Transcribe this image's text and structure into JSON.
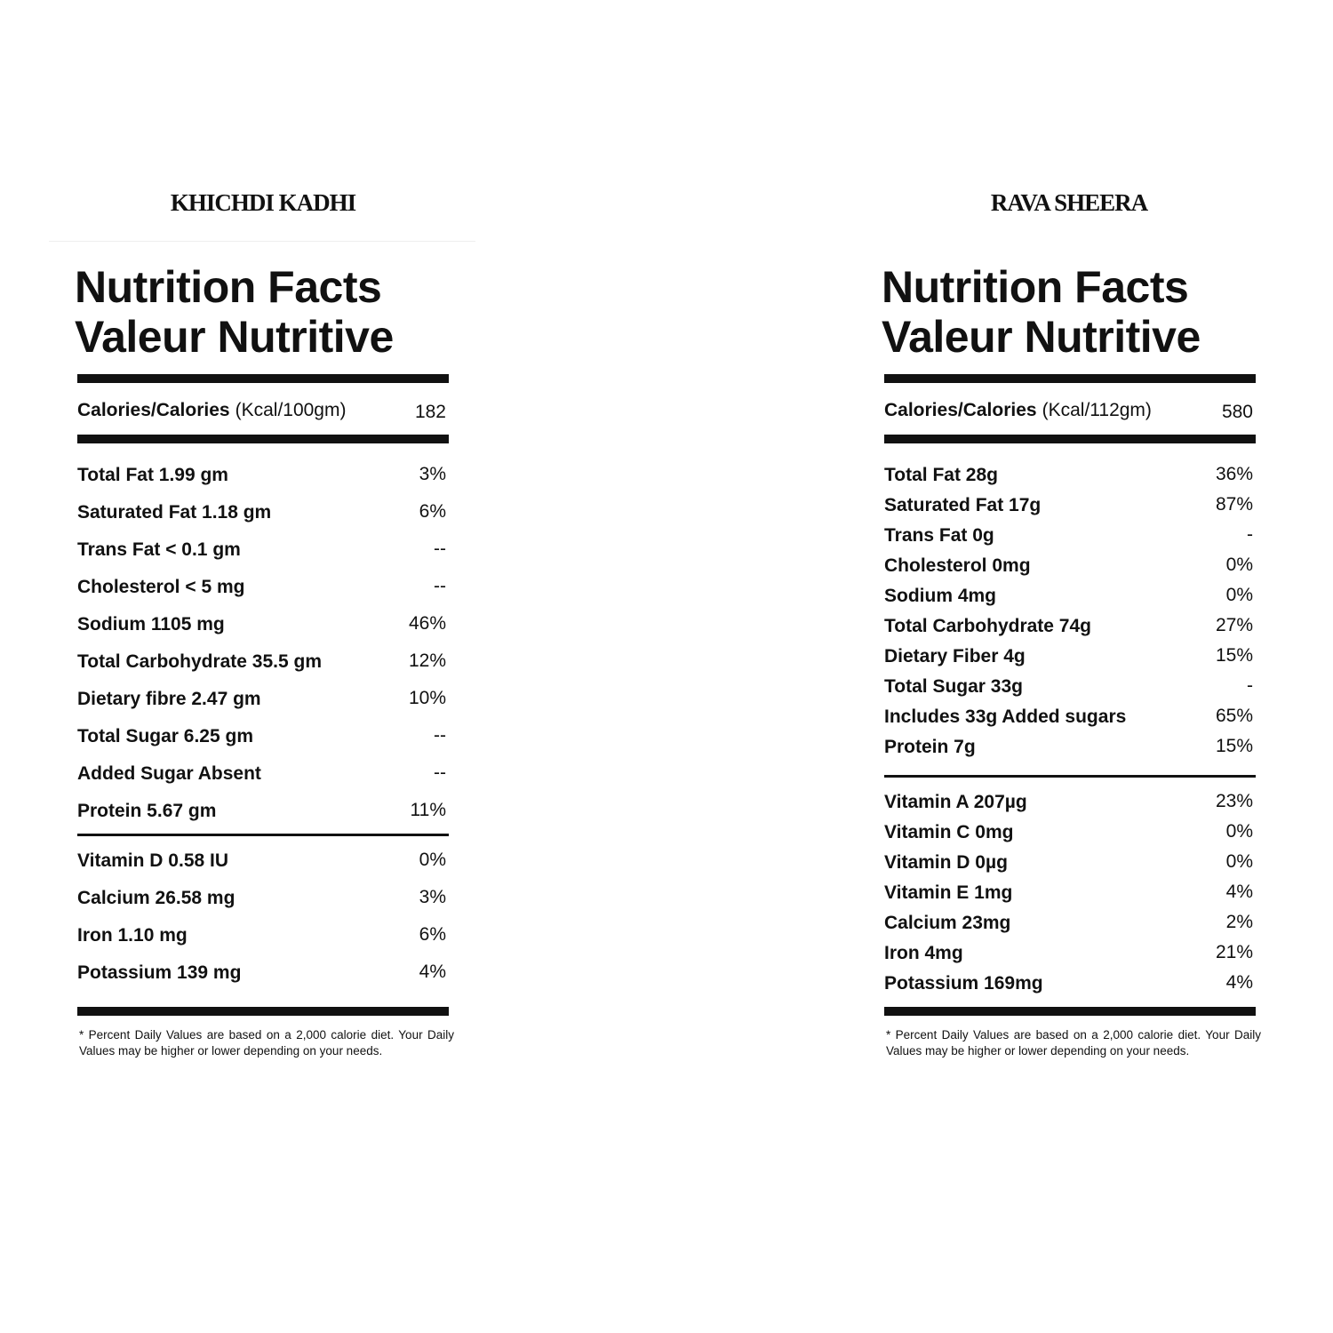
{
  "panels": [
    {
      "title": "KHICHDI KADHI",
      "heading_en": "Nutrition Facts",
      "heading_fr": "Valeur Nutritive",
      "calories_label": "Calories/Calories",
      "calories_unit": "(Kcal/100gm)",
      "calories_value": "182",
      "nutrients": [
        [
          "Total Fat 1.99 gm",
          "3%"
        ],
        [
          "Saturated Fat 1.18 gm",
          "6%"
        ],
        [
          "Trans Fat < 0.1 gm",
          "--"
        ],
        [
          "Cholesterol < 5 mg",
          "--"
        ],
        [
          "Sodium 1105 mg",
          "46%"
        ],
        [
          "Total Carbohydrate 35.5 gm",
          "12%"
        ],
        [
          "Dietary fibre 2.47 gm",
          "10%"
        ],
        [
          "Total Sugar 6.25 gm",
          "--"
        ],
        [
          "Added Sugar Absent",
          "--"
        ],
        [
          "Protein 5.67 gm",
          "11%"
        ]
      ],
      "vitamins": [
        [
          "Vitamin D 0.58 IU",
          "0%"
        ],
        [
          "Calcium 26.58 mg",
          "3%"
        ],
        [
          "Iron 1.10 mg",
          "6%"
        ],
        [
          "Potassium 139 mg",
          "4%"
        ]
      ],
      "footnote": "* Percent Daily Values are based on a 2,000 calorie diet. Your Daily Values may be higher or lower depending on your needs."
    },
    {
      "title": "RAVA SHEERA",
      "heading_en": "Nutrition Facts",
      "heading_fr": "Valeur Nutritive",
      "calories_label": "Calories/Calories",
      "calories_unit": "(Kcal/112gm)",
      "calories_value": "580",
      "nutrients": [
        [
          "Total Fat 28g",
          "36%"
        ],
        [
          "Saturated Fat 17g",
          "87%"
        ],
        [
          "Trans Fat 0g",
          "-"
        ],
        [
          "Cholesterol 0mg",
          "0%"
        ],
        [
          "Sodium 4mg",
          "0%"
        ],
        [
          "Total Carbohydrate 74g",
          "27%"
        ],
        [
          "Dietary Fiber 4g",
          "15%"
        ],
        [
          "Total Sugar 33g",
          "-"
        ],
        [
          "Includes 33g Added sugars",
          "65%"
        ],
        [
          "Protein 7g",
          "15%"
        ]
      ],
      "vitamins": [
        [
          "Vitamin A 207µg",
          "23%"
        ],
        [
          "Vitamin C 0mg",
          "0%"
        ],
        [
          "Vitamin D 0µg",
          "0%"
        ],
        [
          "Vitamin E 1mg",
          "4%"
        ],
        [
          "Calcium 23mg",
          "2%"
        ],
        [
          "Iron 4mg",
          "21%"
        ],
        [
          "Potassium 169mg",
          "4%"
        ]
      ],
      "footnote": "* Percent Daily Values are based on a 2,000 calorie diet. Your Daily Values may be higher or lower depending on your needs."
    }
  ]
}
